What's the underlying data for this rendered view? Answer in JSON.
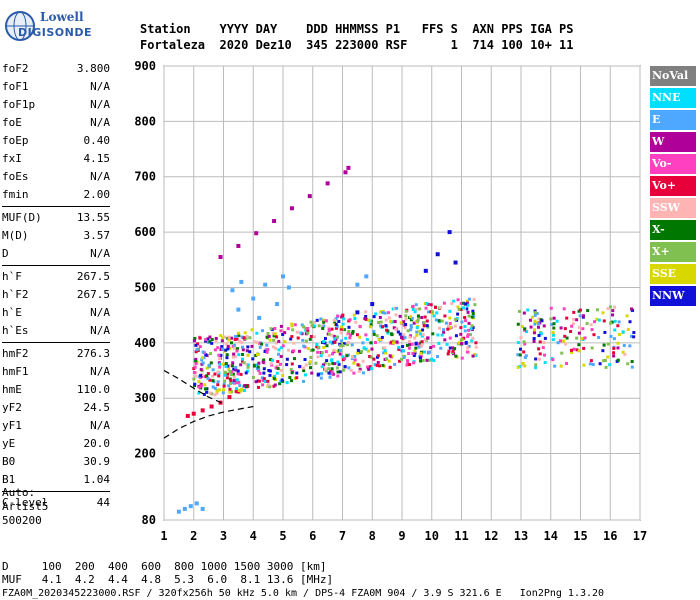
{
  "logo": {
    "line1": "Lowell",
    "line2": "DIGISONDE"
  },
  "header": {
    "line1": "Station    YYYY DAY    DDD HHMMSS P1   FFS S  AXN PPS IGA PS",
    "line2": "Fortaleza  2020 Dez10  345 223000 RSF      1  714 100 10+ 11"
  },
  "params": [
    [
      {
        "name": "foF2",
        "value": "3.800"
      },
      {
        "name": "foF1",
        "value": "N/A"
      },
      {
        "name": "foF1p",
        "value": "N/A"
      },
      {
        "name": "foE",
        "value": "N/A"
      },
      {
        "name": "foEp",
        "value": "0.40"
      },
      {
        "name": "fxI",
        "value": "4.15"
      },
      {
        "name": "foEs",
        "value": "N/A"
      },
      {
        "name": "fmin",
        "value": "2.00"
      }
    ],
    [
      {
        "name": "MUF(D)",
        "value": "13.55"
      },
      {
        "name": "M(D)",
        "value": "3.57"
      },
      {
        "name": "D",
        "value": "N/A"
      }
    ],
    [
      {
        "name": "h`F",
        "value": "267.5"
      },
      {
        "name": "h`F2",
        "value": "267.5"
      },
      {
        "name": "h`E",
        "value": "N/A"
      },
      {
        "name": "h`Es",
        "value": "N/A"
      }
    ],
    [
      {
        "name": "hmF2",
        "value": "276.3"
      },
      {
        "name": "hmF1",
        "value": "N/A"
      },
      {
        "name": "hmE",
        "value": "110.0"
      },
      {
        "name": "yF2",
        "value": "24.5"
      },
      {
        "name": "yF1",
        "value": "N/A"
      },
      {
        "name": "yE",
        "value": "20.0"
      },
      {
        "name": "B0",
        "value": "30.9"
      },
      {
        "name": "B1",
        "value": "1.04"
      }
    ],
    [
      {
        "name": "C-level",
        "value": "44"
      }
    ]
  ],
  "auto": {
    "line1": "Auto:",
    "line2": "Artist5",
    "line3": "500200"
  },
  "legend": [
    {
      "label": "NoVal",
      "color": "#808080"
    },
    {
      "label": "NNE",
      "color": "#00dfff"
    },
    {
      "label": "E",
      "color": "#4fa8ff"
    },
    {
      "label": "W",
      "color": "#b0009a"
    },
    {
      "label": "Vo-",
      "color": "#ff40c0"
    },
    {
      "label": "Vo+",
      "color": "#e8003a"
    },
    {
      "label": "SSW",
      "color": "#ffb4b4"
    },
    {
      "label": "X-",
      "color": "#007800"
    },
    {
      "label": "X+",
      "color": "#80c050"
    },
    {
      "label": "SSE",
      "color": "#d8d800"
    },
    {
      "label": "NNW",
      "color": "#1010d8"
    }
  ],
  "footer": {
    "line1": "D     100  200  400  600  800 1000 1500 3000 [km]",
    "line2": "MUF   4.1  4.2  4.4  4.8  5.3  6.0  8.1 13.6 [MHz]",
    "line3": "FZA0M_2020345223000.RSF / 320fx256h 50 kHz 5.0 km / DPS-4 FZA0M 904 / 3.9 S 321.6 E   Ion2Png 1.3.20"
  },
  "chart_data": {
    "type": "scatter",
    "xlim": [
      1,
      17
    ],
    "ylim": [
      80,
      900
    ],
    "x_ticks": [
      1,
      2,
      3,
      4,
      5,
      6,
      7,
      8,
      9,
      10,
      11,
      12,
      13,
      14,
      15,
      16,
      17
    ],
    "y_ticks": [
      80,
      200,
      300,
      400,
      500,
      600,
      700,
      800,
      900
    ],
    "grid": true,
    "legend_position": "right",
    "traces": [
      {
        "name": "W",
        "color": "#b0009a",
        "x": [
          2.9,
          3.5,
          4.1,
          4.7,
          5.3,
          5.9,
          6.5,
          7.1,
          7.2
        ],
        "y": [
          555,
          575,
          598,
          620,
          643,
          665,
          688,
          708,
          716
        ]
      },
      {
        "name": "E",
        "color": "#4fa8ff",
        "x": [
          3.3,
          3.6,
          4.0,
          4.4,
          4.8,
          5.2,
          3.5,
          4.2,
          5.0,
          7.5,
          7.8
        ],
        "y": [
          495,
          510,
          480,
          505,
          470,
          500,
          460,
          445,
          520,
          505,
          520
        ]
      },
      {
        "name": "Vo+",
        "color": "#e8003a",
        "x": [
          1.8,
          2.0,
          2.3,
          2.6,
          2.9,
          3.2,
          3.5,
          3.8
        ],
        "y": [
          268,
          272,
          278,
          285,
          292,
          302,
          312,
          322
        ]
      },
      {
        "name": "NNW",
        "color": "#1010d8",
        "x": [
          7.5,
          8.0,
          9.8,
          10.2,
          10.6,
          10.8
        ],
        "y": [
          455,
          470,
          530,
          560,
          600,
          545
        ]
      },
      {
        "name": "E-low",
        "color": "#4fa8ff",
        "x": [
          1.5,
          1.7,
          1.9,
          2.1,
          2.3
        ],
        "y": [
          95,
          100,
          105,
          110,
          100
        ]
      }
    ],
    "curve": {
      "x": [
        1.0,
        1.5,
        2.0,
        2.5,
        3.0,
        3.5,
        4.0
      ],
      "y": [
        228,
        245,
        258,
        268,
        275,
        280,
        285
      ]
    },
    "curve2": {
      "x": [
        1.0,
        1.5,
        2.0,
        2.5,
        3.0
      ],
      "y": [
        350,
        335,
        318,
        302,
        290
      ]
    }
  }
}
